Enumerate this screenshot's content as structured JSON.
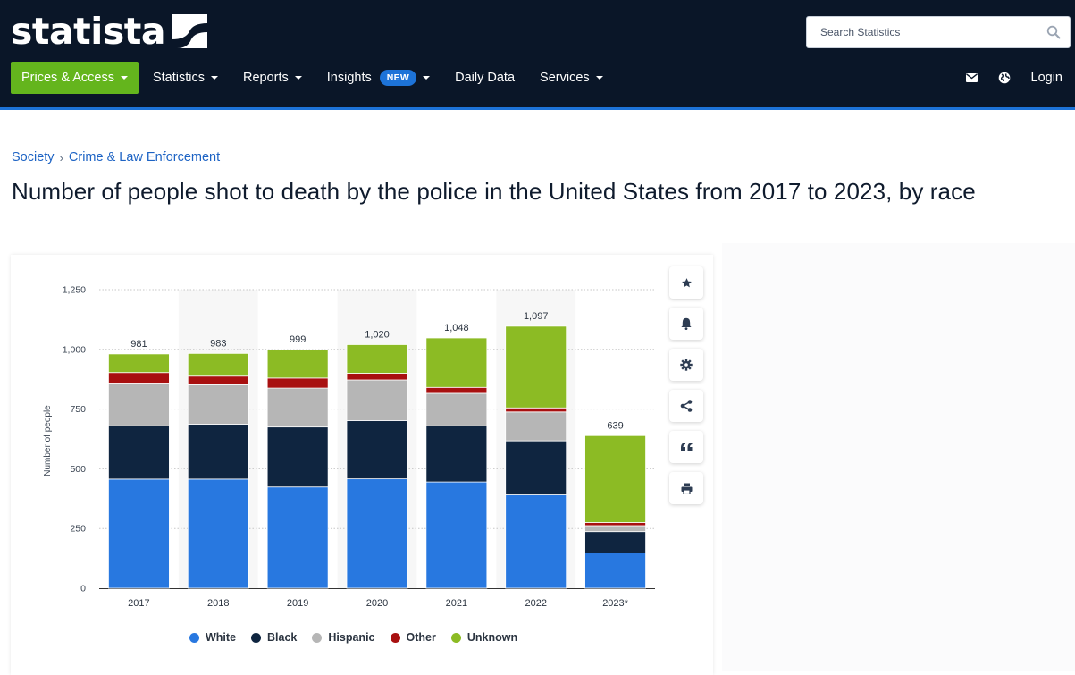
{
  "header": {
    "logo_text": "statista",
    "search_placeholder": "Search Statistics",
    "nav": [
      {
        "label": "Prices & Access",
        "caret": true,
        "primary": true
      },
      {
        "label": "Statistics",
        "caret": true
      },
      {
        "label": "Reports",
        "caret": true
      },
      {
        "label": "Insights",
        "caret": true,
        "badge": "NEW"
      },
      {
        "label": "Daily Data",
        "caret": false
      },
      {
        "label": "Services",
        "caret": true
      }
    ],
    "login_label": "Login",
    "icons": [
      "mail-icon",
      "globe-icon"
    ]
  },
  "breadcrumb": {
    "items": [
      "Society",
      "Crime & Law Enforcement"
    ]
  },
  "page_title": "Number of people shot to death by the police in the United States from 2017 to 2023, by race",
  "tools": [
    "star-icon",
    "bell-icon",
    "gear-icon",
    "share-icon",
    "quote-icon",
    "print-icon"
  ],
  "colors": {
    "white": "#2878e0",
    "black": "#0f2540",
    "hispanic": "#b6b6b6",
    "other": "#a81010",
    "unknown": "#8cbb24",
    "header_bg": "#0a1628",
    "accent_green": "#64b51d"
  },
  "chart_data": {
    "type": "bar",
    "stacked": true,
    "categories": [
      "2017",
      "2018",
      "2019",
      "2020",
      "2021",
      "2022",
      "2023*"
    ],
    "totals": [
      "981",
      "983",
      "999",
      "1,020",
      "1,048",
      "1,097",
      "639"
    ],
    "series": [
      {
        "name": "White",
        "color": "#2878e0",
        "values": [
          457,
          457,
          424,
          458,
          445,
          391,
          148
        ]
      },
      {
        "name": "Black",
        "color": "#0f2540",
        "values": [
          223,
          230,
          251,
          244,
          235,
          226,
          89
        ]
      },
      {
        "name": "Hispanic",
        "color": "#b6b6b6",
        "values": [
          179,
          165,
          163,
          170,
          136,
          121,
          25
        ]
      },
      {
        "name": "Other",
        "color": "#a81010",
        "values": [
          44,
          36,
          42,
          28,
          25,
          17,
          13
        ]
      },
      {
        "name": "Unknown",
        "color": "#8cbb24",
        "values": [
          78,
          95,
          119,
          120,
          207,
          342,
          364
        ]
      }
    ],
    "ylabel": "Number of people",
    "xlabel": "",
    "ylim": [
      0,
      1250
    ],
    "yticks": [
      "0",
      "250",
      "500",
      "750",
      "1,000",
      "1,250"
    ],
    "grid": true,
    "legend_position": "bottom"
  }
}
